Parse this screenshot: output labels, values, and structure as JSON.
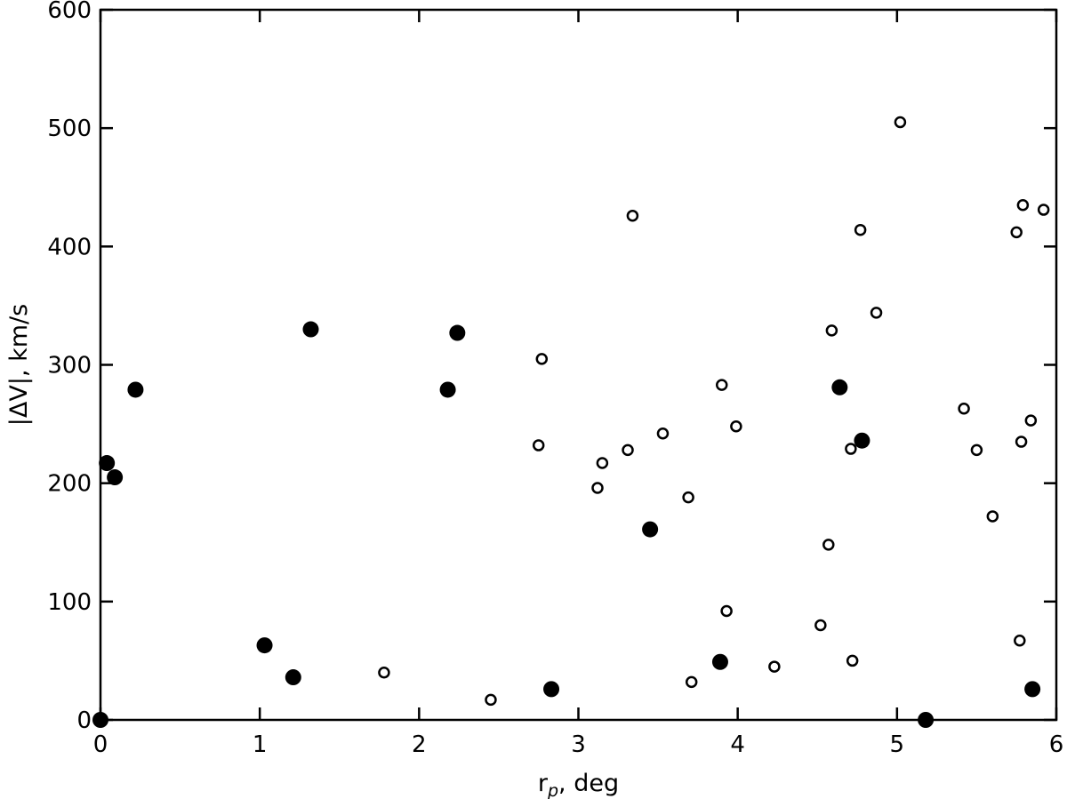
{
  "chart_data": {
    "type": "scatter",
    "title": "",
    "xlabel_main": "r",
    "xlabel_sub": "p",
    "xlabel_rest": ", deg",
    "ylabel": "|ΔV|, km/s",
    "xlim": [
      0,
      6
    ],
    "ylim": [
      0,
      600
    ],
    "xticks": [
      0,
      1,
      2,
      3,
      4,
      5,
      6
    ],
    "yticks": [
      0,
      100,
      200,
      300,
      400,
      500,
      600
    ],
    "grid": false,
    "series": [
      {
        "marker": "filled-circle",
        "color": "#000000",
        "x": [
          0.0,
          0.04,
          0.09,
          0.22,
          1.03,
          1.21,
          1.32,
          2.18,
          2.24,
          2.83,
          3.45,
          3.89,
          4.64,
          4.78,
          5.18,
          5.85
        ],
        "y": [
          0,
          217,
          205,
          279,
          63,
          36,
          330,
          279,
          327,
          26,
          161,
          49,
          281,
          236,
          0,
          26
        ]
      },
      {
        "marker": "open-circle",
        "color": "#000000",
        "x": [
          1.78,
          2.45,
          2.75,
          2.77,
          3.12,
          3.15,
          3.31,
          3.34,
          3.53,
          3.69,
          3.71,
          3.9,
          3.93,
          3.99,
          4.23,
          4.52,
          4.57,
          4.59,
          4.71,
          4.72,
          4.77,
          4.87,
          5.02,
          5.42,
          5.5,
          5.6,
          5.75,
          5.77,
          5.78,
          5.79,
          5.84,
          5.92
        ],
        "y": [
          40,
          17,
          232,
          305,
          196,
          217,
          228,
          426,
          242,
          188,
          32,
          283,
          92,
          248,
          45,
          80,
          148,
          329,
          229,
          50,
          414,
          344,
          505,
          263,
          228,
          172,
          412,
          67,
          235,
          435,
          253,
          431
        ]
      }
    ]
  }
}
